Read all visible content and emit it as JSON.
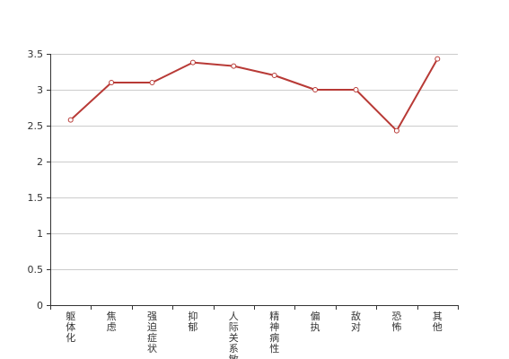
{
  "chart_data": {
    "type": "line",
    "categories": [
      "躯体化",
      "焦虑",
      "强迫症状",
      "抑郁",
      "人际关系敏感",
      "精神病性",
      "偏执",
      "敌对",
      "恐怖",
      "其他"
    ],
    "series": [
      {
        "values": [
          2.58,
          3.1,
          3.1,
          3.38,
          3.33,
          3.2,
          3.0,
          3.0,
          2.43,
          3.43
        ]
      }
    ],
    "ylim": [
      0,
      3.5
    ],
    "yticks": [
      0,
      0.5,
      1,
      1.5,
      2,
      2.5,
      3,
      3.5
    ],
    "ytick_labels": [
      "0",
      "0.5",
      "1",
      "1.5",
      "2",
      "2.5",
      "3",
      "3.5"
    ],
    "grid": true,
    "title": "",
    "xlabel": "",
    "ylabel": "",
    "colors": {
      "line": "#b83a36",
      "marker_fill": "#ffffff",
      "grid": "#cccccc",
      "axis": "#333333"
    }
  }
}
